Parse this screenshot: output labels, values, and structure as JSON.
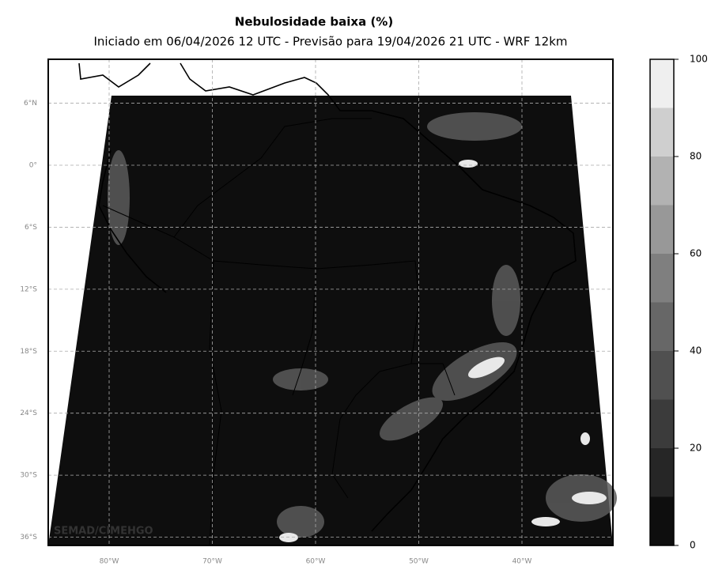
{
  "header": {
    "title": "Nebulosidade baixa (%)",
    "subtitle": "Iniciado em 06/04/2026 12 UTC - Previsão para 19/04/2026 21 UTC - WRF 12km"
  },
  "map": {
    "watermark": "SEMAD/CIMEHGO",
    "lat_ticks": [
      {
        "value": 6,
        "label": "6°N"
      },
      {
        "value": 0,
        "label": "0°"
      },
      {
        "value": -6,
        "label": "6°S"
      },
      {
        "value": -12,
        "label": "12°S"
      },
      {
        "value": -18,
        "label": "18°S"
      },
      {
        "value": -24,
        "label": "24°S"
      },
      {
        "value": -30,
        "label": "30°S"
      },
      {
        "value": -36,
        "label": "36°S"
      }
    ],
    "lon_ticks": [
      {
        "value": -80,
        "label": "80°W"
      },
      {
        "value": -70,
        "label": "70°W"
      },
      {
        "value": -60,
        "label": "60°W"
      },
      {
        "value": -50,
        "label": "50°W"
      },
      {
        "value": -40,
        "label": "40°W"
      }
    ]
  },
  "colorbar": {
    "lim": [
      0,
      100
    ],
    "ticks": [
      0,
      20,
      40,
      60,
      80,
      100
    ],
    "levels": [
      0,
      10,
      20,
      30,
      40,
      50,
      60,
      70,
      80,
      90,
      100
    ],
    "colors": [
      "#0e0e0e",
      "#262626",
      "#3b3b3b",
      "#505050",
      "#676767",
      "#7f7f7f",
      "#989898",
      "#b2b2b2",
      "#cfcfcf",
      "#efefef"
    ]
  }
}
